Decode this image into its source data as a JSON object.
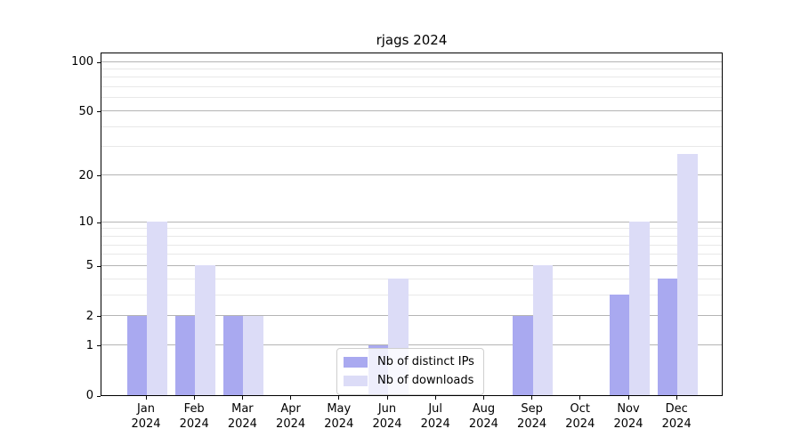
{
  "figure": {
    "title": "rjags 2024",
    "background_color": "#ffffff",
    "axis_color": "#000000"
  },
  "chart_data": {
    "type": "bar",
    "title": "rjags 2024",
    "categories": [
      "Jan",
      "Feb",
      "Mar",
      "Apr",
      "May",
      "Jun",
      "Jul",
      "Aug",
      "Sep",
      "Oct",
      "Nov",
      "Dec"
    ],
    "category_year_label": "2024",
    "series": [
      {
        "name": "Nb of distinct IPs",
        "color": "#a9a9f0",
        "values": [
          2,
          2,
          2,
          0,
          0,
          1,
          0,
          0,
          2,
          0,
          3,
          4
        ]
      },
      {
        "name": "Nb of downloads",
        "color": "#dcdcf7",
        "values": [
          10,
          5,
          2,
          0,
          0,
          4,
          0,
          0,
          5,
          0,
          10,
          27
        ]
      }
    ],
    "y_scale": "log1p",
    "y_major_ticks": [
      0,
      1,
      2,
      5,
      10,
      20,
      50,
      100
    ],
    "y_minor_gridlines": [
      3,
      4,
      6,
      7,
      8,
      9,
      30,
      40,
      60,
      70,
      80,
      90
    ],
    "ylim": [
      0,
      115
    ],
    "xlabel": "",
    "ylabel": "",
    "grid": true,
    "major_grid_color": "#b4b4b4",
    "minor_grid_color": "#e8e8e8",
    "legend_position": "lower center",
    "legend_entries": [
      "Nb of distinct IPs",
      "Nb of downloads"
    ]
  }
}
